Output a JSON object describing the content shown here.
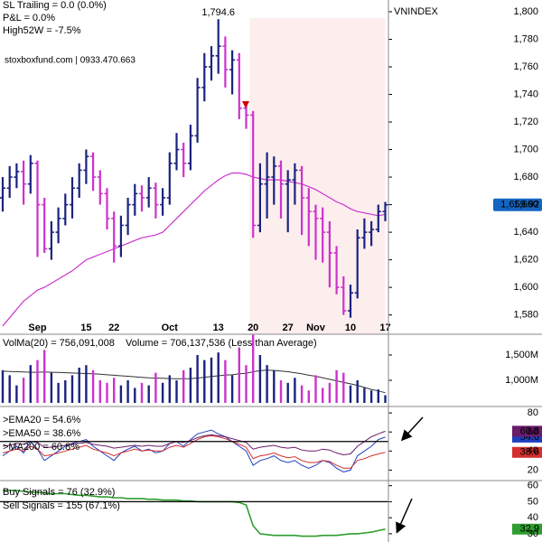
{
  "chart_data": [
    {
      "type": "ohlc",
      "title": "VNINDEX",
      "annotations": [
        {
          "text": "SL Trailing = 0.0 (0.0%)",
          "color": "#d00000"
        },
        {
          "text": "P&L = 0.0%",
          "color": "#d00000"
        },
        {
          "text": "High52W = -7.5%",
          "color": "#000000"
        }
      ],
      "watermark": "stoxboxfund.com | 0933.470.663",
      "categories": [
        null,
        null,
        null,
        null,
        null,
        "Sep",
        null,
        null,
        null,
        null,
        null,
        null,
        "15",
        null,
        null,
        null,
        "22",
        null,
        null,
        null,
        null,
        null,
        null,
        null,
        "Oct",
        null,
        null,
        null,
        null,
        null,
        null,
        "13",
        null,
        null,
        null,
        null,
        "20",
        null,
        null,
        null,
        null,
        "27",
        null,
        null,
        null,
        "Nov",
        null,
        null,
        null,
        null,
        "10",
        null,
        null,
        null,
        null,
        "17"
      ],
      "open": [
        1665,
        1672,
        1680,
        1684,
        1675,
        1690,
        1660,
        1628,
        1640,
        1650,
        1660,
        1672,
        1685,
        1695,
        1680,
        1668,
        1650,
        1630,
        1645,
        1660,
        1668,
        1665,
        1672,
        1660,
        1665,
        1690,
        1700,
        1690,
        1710,
        1745,
        1760,
        1768,
        1775,
        1758,
        1765,
        1730,
        1725,
        1645,
        1675,
        1680,
        1688,
        1675,
        1678,
        1685,
        1665,
        1655,
        1650,
        1640,
        1625,
        1600,
        1583,
        1596,
        1636,
        1640,
        1642,
        1655
      ],
      "high": [
        1680,
        1688,
        1690,
        1692,
        1696,
        1692,
        1665,
        1648,
        1658,
        1668,
        1680,
        1690,
        1700,
        1698,
        1685,
        1672,
        1655,
        1652,
        1665,
        1675,
        1674,
        1680,
        1676,
        1672,
        1698,
        1712,
        1705,
        1718,
        1752,
        1770,
        1775,
        1794.6,
        1782,
        1772,
        1770,
        1735,
        1728,
        1690,
        1698,
        1695,
        1692,
        1685,
        1690,
        1688,
        1672,
        1660,
        1658,
        1648,
        1630,
        1608,
        1602,
        1642,
        1650,
        1648,
        1660,
        1662
      ],
      "low": [
        1655,
        1665,
        1672,
        1660,
        1668,
        1622,
        1625,
        1620,
        1632,
        1645,
        1650,
        1665,
        1675,
        1670,
        1660,
        1642,
        1618,
        1622,
        1638,
        1652,
        1655,
        1658,
        1650,
        1652,
        1660,
        1685,
        1680,
        1685,
        1705,
        1735,
        1750,
        1755,
        1745,
        1740,
        1722,
        1715,
        1636,
        1640,
        1650,
        1660,
        1650,
        1640,
        1660,
        1638,
        1630,
        1620,
        1618,
        1600,
        1595,
        1580,
        1578,
        1592,
        1628,
        1630,
        1640,
        1648
      ],
      "close": [
        1672,
        1680,
        1684,
        1675,
        1690,
        1660,
        1628,
        1640,
        1650,
        1660,
        1672,
        1685,
        1695,
        1680,
        1668,
        1650,
        1630,
        1645,
        1660,
        1668,
        1665,
        1672,
        1660,
        1665,
        1690,
        1700,
        1690,
        1710,
        1745,
        1760,
        1768,
        1775,
        1758,
        1765,
        1730,
        1725,
        1645,
        1675,
        1680,
        1688,
        1675,
        1678,
        1685,
        1665,
        1655,
        1650,
        1640,
        1625,
        1600,
        1583,
        1596,
        1636,
        1640,
        1642,
        1655,
        1659.92
      ],
      "ma": {
        "color": "#cc33cc",
        "values": [
          1572,
          1578,
          1584,
          1590,
          1594,
          1598,
          1600,
          1603,
          1606,
          1609,
          1612,
          1616,
          1620,
          1622,
          1624,
          1626,
          1628,
          1630,
          1632,
          1634,
          1636,
          1637,
          1638,
          1640,
          1645,
          1650,
          1655,
          1660,
          1665,
          1670,
          1674,
          1678,
          1681,
          1683,
          1683,
          1682,
          1680,
          1679,
          1678,
          1678,
          1678,
          1677,
          1676,
          1675,
          1673,
          1671,
          1668,
          1665,
          1662,
          1660,
          1657,
          1655,
          1654,
          1653,
          1652,
          1653
        ]
      },
      "up_color": "#1a237e",
      "down_color": "#cc33cc",
      "highlight": {
        "from": 36,
        "to": 55,
        "color": "#fdeeee"
      },
      "high_label": "1,794.6",
      "last_price_label": "1,659.92",
      "last_price_color": "#1565c0",
      "ylim": [
        1566,
        1808.5
      ],
      "yticks": [
        {
          "value": 1580,
          "label": "1,580"
        },
        {
          "value": 1600,
          "label": "1,600"
        },
        {
          "value": 1620,
          "label": "1,620"
        },
        {
          "value": 1640,
          "label": "1,640"
        },
        {
          "value": 1660,
          "label": "1,660"
        },
        {
          "value": 1680,
          "label": "1,680"
        },
        {
          "value": 1700,
          "label": "1,700"
        },
        {
          "value": 1720,
          "label": "1,720"
        },
        {
          "value": 1740,
          "label": "1,740"
        },
        {
          "value": 1760,
          "label": "1,760"
        },
        {
          "value": 1780,
          "label": "1,780"
        },
        {
          "value": 1800,
          "label": "1,800"
        }
      ]
    },
    {
      "type": "bar",
      "series": [
        {
          "name": "VolMa(20) = 756,091,008",
          "kind": "line",
          "color": "#333333",
          "values": [
            1180,
            1175,
            1170,
            1165,
            1160,
            1160,
            1165,
            1160,
            1155,
            1150,
            1145,
            1140,
            1135,
            1130,
            1120,
            1110,
            1100,
            1090,
            1080,
            1070,
            1060,
            1050,
            1045,
            1040,
            1035,
            1030,
            1030,
            1035,
            1045,
            1060,
            1075,
            1090,
            1105,
            1110,
            1130,
            1140,
            1170,
            1190,
            1200,
            1195,
            1185,
            1170,
            1150,
            1130,
            1100,
            1080,
            1050,
            1020,
            990,
            960,
            930,
            900,
            860,
            820,
            790,
            756.091008
          ]
        },
        {
          "name": "Volume = 706,137,536 (Less than Average)",
          "kind": "bar",
          "color": "#1a237e",
          "values": [
            1200,
            1100,
            900,
            1050,
            1300,
            1400,
            1600,
            1150,
            950,
            1000,
            1100,
            1250,
            1300,
            1200,
            1000,
            950,
            1050,
            900,
            1000,
            850,
            950,
            900,
            1150,
            950,
            1100,
            1000,
            1200,
            1250,
            1500,
            1400,
            1450,
            1550,
            1400,
            1100,
            1650,
            1300,
            1900,
            1500,
            1300,
            1200,
            1000,
            950,
            1050,
            900,
            800,
            1100,
            850,
            950,
            1200,
            1150,
            900,
            1000,
            850,
            800,
            820,
            706.137536
          ]
        }
      ],
      "ylim": [
        554,
        1875
      ],
      "yticks": [
        {
          "value": 1000,
          "label": "1,000M"
        },
        {
          "value": 1500,
          "label": "1,500M"
        }
      ]
    },
    {
      "type": "line",
      "series": [
        {
          "name": ">EMA20 = 54.6%",
          "color": "#1f3fbf",
          "values": [
            35,
            40,
            45,
            38,
            50,
            42,
            30,
            35,
            40,
            45,
            48,
            50,
            52,
            45,
            40,
            35,
            30,
            38,
            42,
            45,
            40,
            42,
            38,
            40,
            48,
            50,
            45,
            52,
            58,
            60,
            62,
            58,
            55,
            50,
            45,
            40,
            25,
            30,
            32,
            35,
            30,
            28,
            30,
            25,
            22,
            25,
            30,
            28,
            22,
            18,
            20,
            35,
            40,
            45,
            52,
            54.6
          ]
        },
        {
          "name": ">EMA50 = 38.6%",
          "color": "#d32f2f",
          "values": [
            38,
            40,
            42,
            40,
            45,
            42,
            35,
            36,
            38,
            40,
            42,
            44,
            46,
            42,
            40,
            38,
            35,
            38,
            40,
            42,
            40,
            41,
            40,
            40,
            44,
            46,
            44,
            48,
            52,
            55,
            56,
            55,
            53,
            50,
            47,
            44,
            32,
            35,
            36,
            38,
            35,
            33,
            34,
            30,
            28,
            28,
            30,
            29,
            25,
            22,
            22,
            30,
            32,
            35,
            37,
            38.6
          ]
        },
        {
          "name": ">MA200 = 60.8%",
          "color": "#6a1b6a",
          "values": [
            45,
            46,
            48,
            47,
            50,
            49,
            44,
            44,
            45,
            46,
            47,
            48,
            49,
            47,
            46,
            45,
            43,
            44,
            45,
            46,
            45,
            46,
            45,
            45,
            48,
            50,
            49,
            51,
            54,
            56,
            57,
            56,
            55,
            53,
            51,
            49,
            42,
            44,
            45,
            46,
            44,
            43,
            44,
            41,
            40,
            40,
            42,
            41,
            38,
            36,
            37,
            45,
            50,
            55,
            58,
            60.8
          ]
        }
      ],
      "threshold": 50,
      "ylim": [
        9,
        82
      ],
      "yticks": [
        20,
        40,
        60,
        80
      ]
    },
    {
      "type": "line",
      "series": [
        {
          "name": "Buy Signals = 76 (32.9%)",
          "color": "#2e9e2e",
          "values": [
            57,
            57,
            57,
            56.5,
            56,
            56,
            55.5,
            55,
            55,
            55,
            54.5,
            54,
            54,
            53.5,
            53,
            53,
            52.5,
            52.5,
            52,
            52,
            52,
            51.5,
            51.5,
            51,
            51,
            51,
            50.5,
            50.5,
            50,
            50,
            50,
            50,
            50,
            50,
            49.5,
            48,
            35,
            30,
            29.5,
            29,
            29,
            29,
            29,
            28.5,
            28.5,
            28.5,
            29,
            29,
            29,
            29.5,
            30,
            30,
            30.5,
            31,
            32,
            32.9
          ]
        }
      ],
      "annotations": [
        {
          "text": "Sell Signals = 155 (67.1%)",
          "color": "#d00000"
        }
      ],
      "threshold": 50,
      "ylim": [
        26,
        61.5
      ],
      "yticks": [
        30,
        40,
        50,
        60
      ]
    }
  ]
}
